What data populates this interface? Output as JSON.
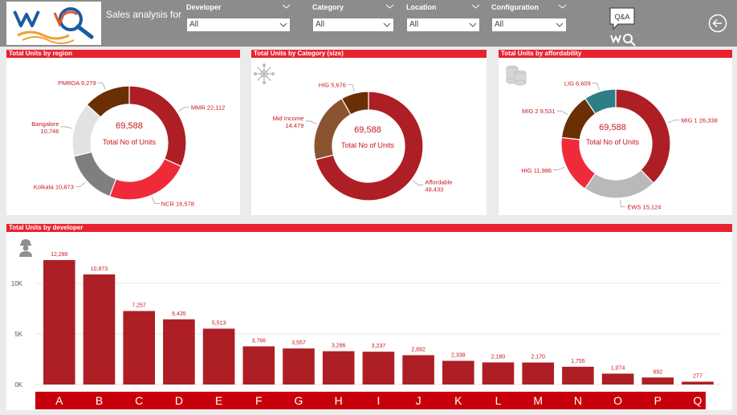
{
  "header": {
    "title": "Sales analysis for",
    "filters": [
      {
        "label": "Developer",
        "value": "All"
      },
      {
        "label": "Category",
        "value": "All"
      },
      {
        "label": "Location",
        "value": "All"
      },
      {
        "label": "Configuration",
        "value": "All"
      }
    ],
    "qa_label": "Q&A"
  },
  "colors": {
    "header_bg": "#8c8c8c",
    "title_bar": "#e8232f",
    "bar": "#ad1f24",
    "text_red": "#c8171e",
    "axis_bar": "#c8000b"
  },
  "cards": {
    "region": {
      "title": "Total Units by region",
      "center_value": "69,588",
      "center_label": "Total No of Units"
    },
    "category": {
      "title": "Total Units by Category (size)",
      "center_value": "69,588",
      "center_label": "Total No of Units"
    },
    "affordability": {
      "title": "Total Units by affordability",
      "center_value": "69,588",
      "center_label": "Total No of Units"
    },
    "developer": {
      "title": "Total Units by developer"
    }
  },
  "chart_data": [
    {
      "type": "pie",
      "title": "Total Units by region",
      "slices": [
        {
          "label": "MMR",
          "display": "MMR 22,112",
          "value": 22112,
          "color": "#ad1f24"
        },
        {
          "label": "NCR",
          "display": "NCR 16,578",
          "value": 16578,
          "color": "#ef2b3a"
        },
        {
          "label": "Kolkata",
          "display": "Kolkata 10,873",
          "value": 10873,
          "color": "#7f7f7f"
        },
        {
          "label": "Bangalore",
          "display": "Bangalore 10,746",
          "value": 10746,
          "color": "#e2e2e2"
        },
        {
          "label": "PMRDA",
          "display": "PMRDA 9,279",
          "value": 9279,
          "color": "#6b2f05"
        }
      ]
    },
    {
      "type": "pie",
      "title": "Total Units by Category (size)",
      "slices": [
        {
          "label": "Affordable",
          "display": "Affordable 49,433",
          "value": 49433,
          "color": "#ad1f24"
        },
        {
          "label": "Mid Income",
          "display": "Mid Income 14,479",
          "value": 14479,
          "color": "#8b5431"
        },
        {
          "label": "HIG",
          "display": "HIG 5,676",
          "value": 5676,
          "color": "#6b2f05"
        }
      ]
    },
    {
      "type": "pie",
      "title": "Total Units by affordability",
      "slices": [
        {
          "label": "MIG 1",
          "display": "MIG 1 26,338",
          "value": 26338,
          "color": "#ad1f24"
        },
        {
          "label": "EWS",
          "display": "EWS 15,124",
          "value": 15124,
          "color": "#b9b9b9"
        },
        {
          "label": "HIG",
          "display": "HIG 11,986",
          "value": 11986,
          "color": "#ef2b3a"
        },
        {
          "label": "MIG 2",
          "display": "MIG 2 9,531",
          "value": 9531,
          "color": "#6b2f05"
        },
        {
          "label": "LIG",
          "display": "LIG 6,609",
          "value": 6609,
          "color": "#2e7d87"
        }
      ]
    },
    {
      "type": "bar",
      "title": "Total Units by developer",
      "categories": [
        "A",
        "B",
        "C",
        "D",
        "E",
        "F",
        "G",
        "H",
        "I",
        "J",
        "K",
        "L",
        "M",
        "N",
        "O",
        "P",
        "Q"
      ],
      "values": [
        12286,
        10873,
        7257,
        6435,
        5513,
        3766,
        3557,
        3286,
        3237,
        2892,
        2338,
        2180,
        2170,
        1755,
        1074,
        692,
        277
      ],
      "labels": [
        "12,286",
        "10,873",
        "7,257",
        "6,435",
        "5,513",
        "3,766",
        "3,557",
        "3,286",
        "3,237",
        "2,892",
        "2,338",
        "2,180",
        "2,170",
        "1,755",
        "1,074",
        "692",
        "277"
      ],
      "ylim": [
        0,
        13000
      ],
      "yticks": [
        0,
        5000,
        10000
      ],
      "ytick_labels": [
        "0K",
        "5K",
        "10K"
      ]
    }
  ]
}
